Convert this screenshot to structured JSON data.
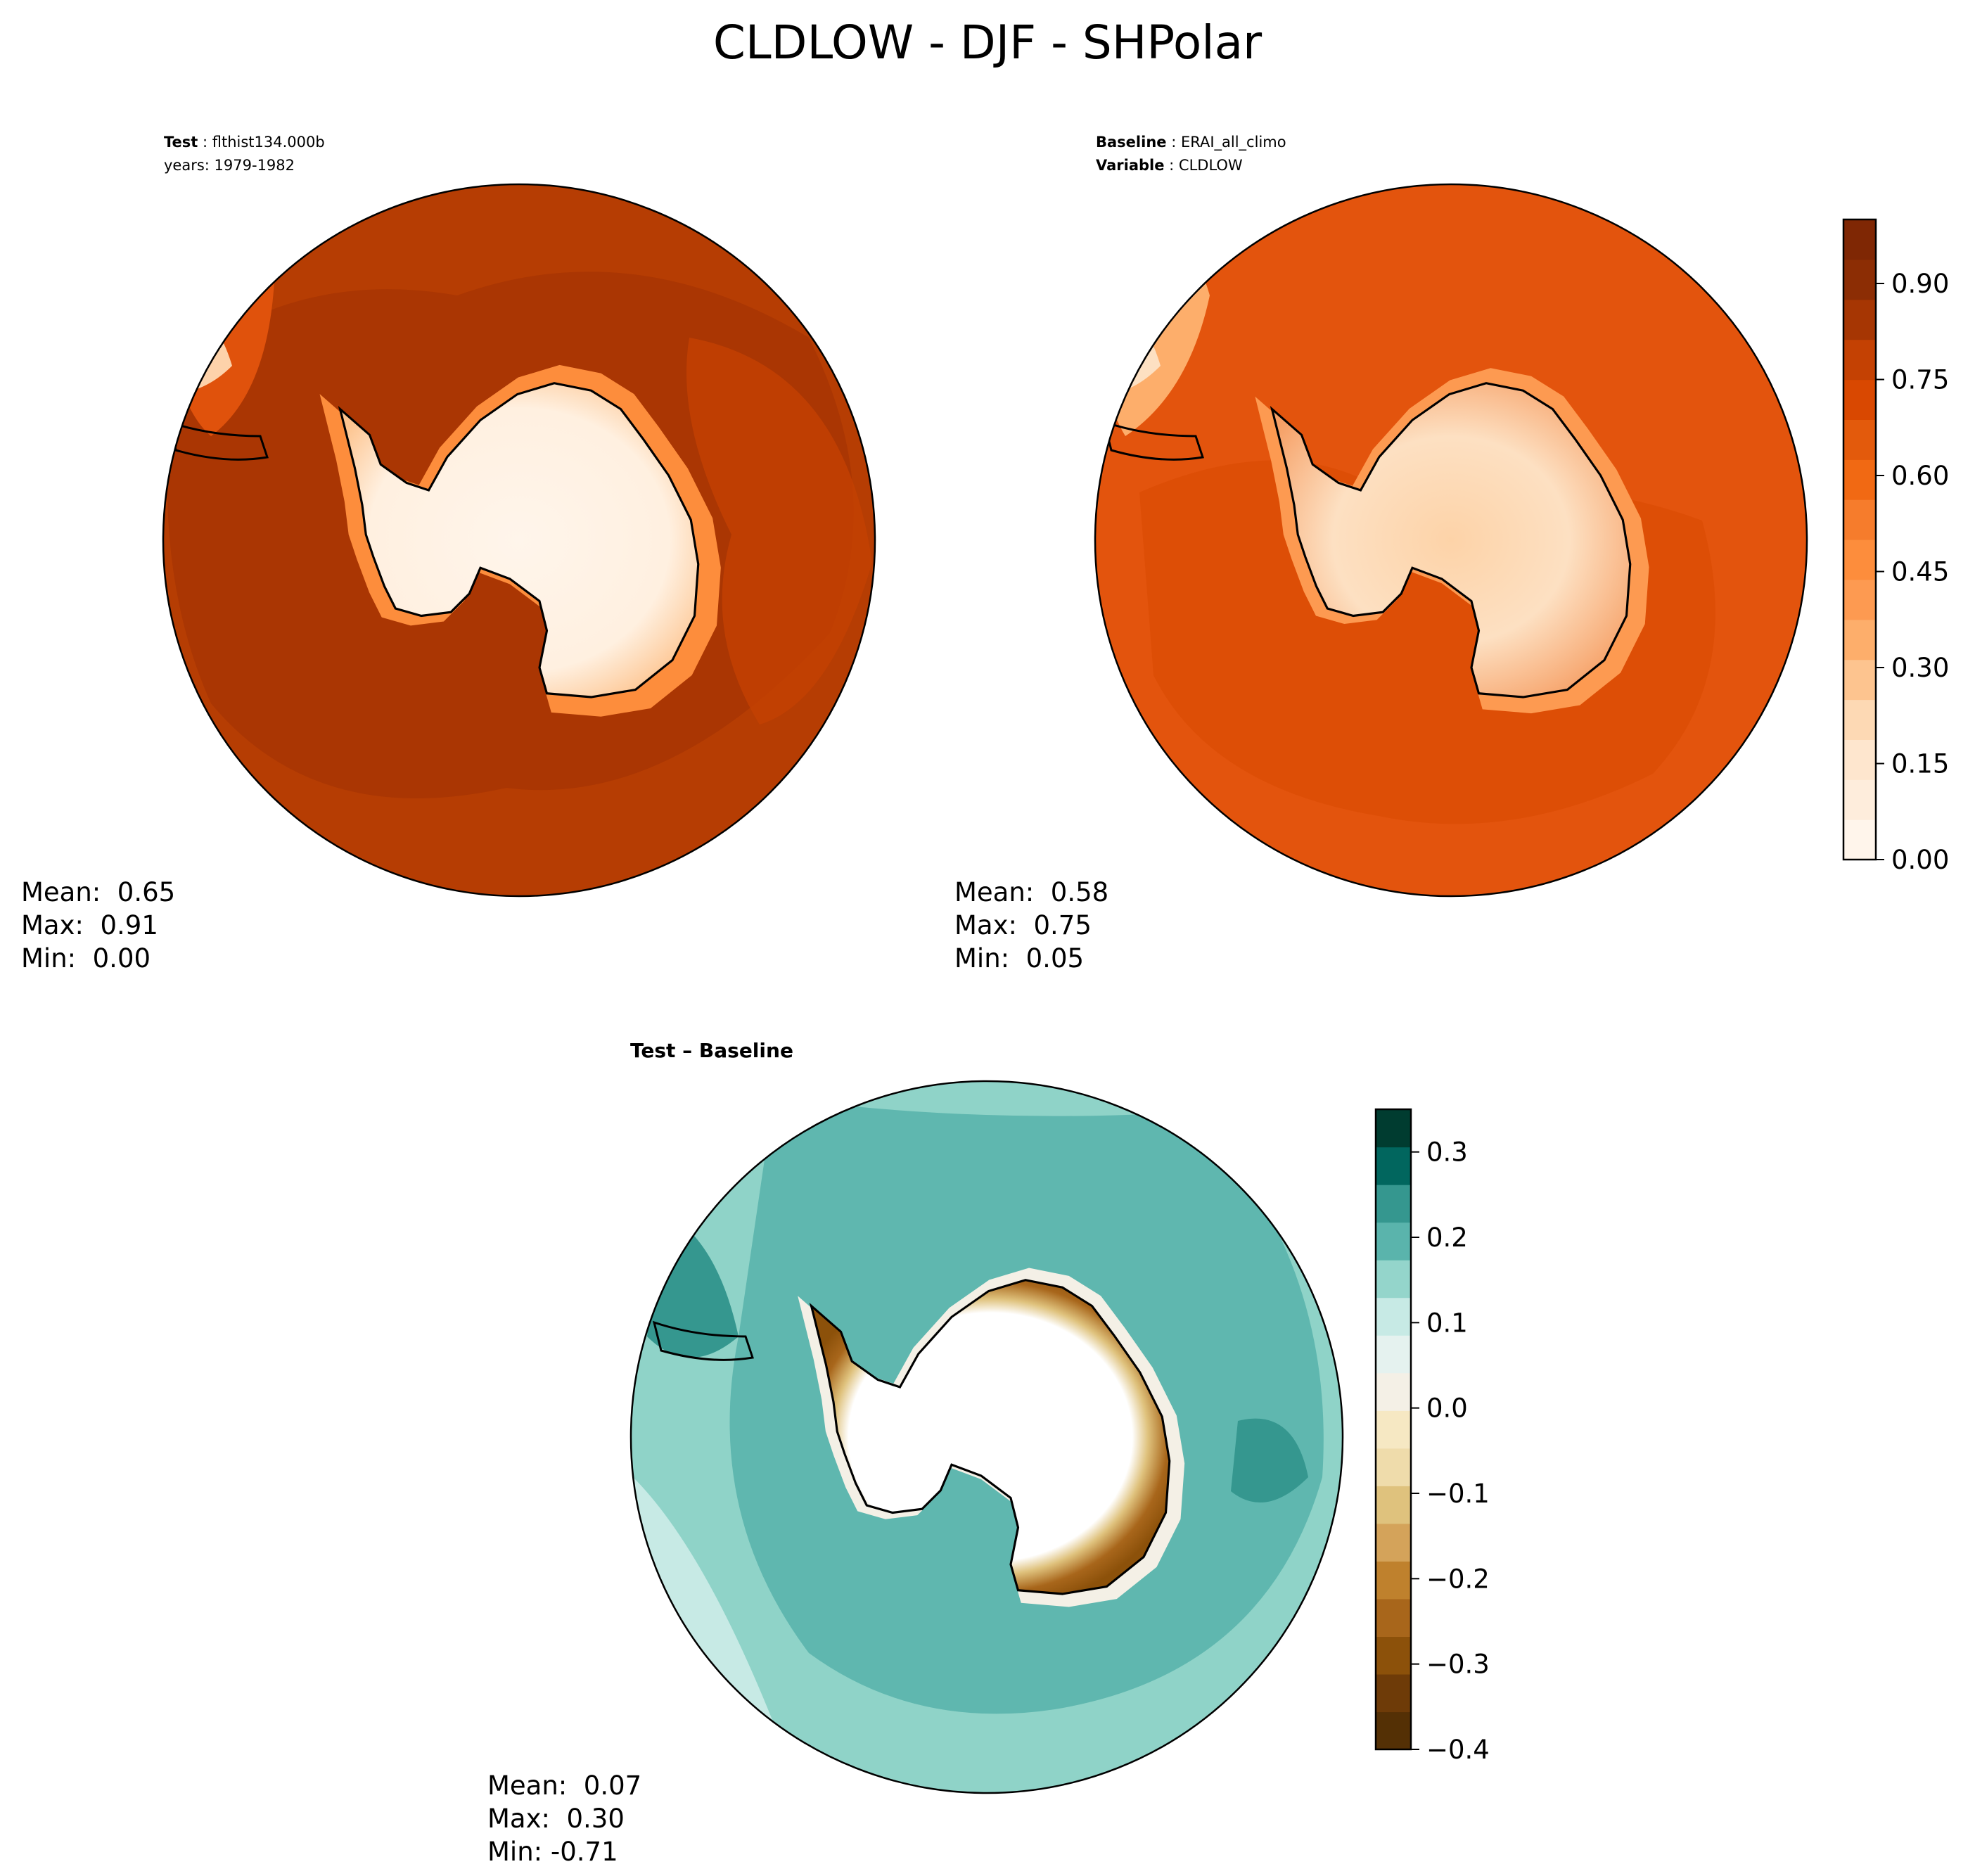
{
  "title": "CLDLOW - DJF - SHPolar",
  "panels": [
    {
      "id": "test",
      "header": [
        {
          "label": "Test",
          "value": "flthist134.000b"
        },
        {
          "label": "",
          "value": "years: 1979-1982"
        }
      ],
      "stats": {
        "mean": "Mean:  0.65",
        "max": "Max:  0.91",
        "min": "Min:  0.00"
      }
    },
    {
      "id": "baseline",
      "header": [
        {
          "label": "Baseline",
          "value": "ERAI_all_climo"
        },
        {
          "label": "Variable",
          "value": "CLDLOW"
        }
      ],
      "stats": {
        "mean": "Mean:  0.58",
        "max": "Max:  0.75",
        "min": "Min:  0.05"
      }
    },
    {
      "id": "difference",
      "title": "Test – Baseline",
      "stats": {
        "mean": "Mean:  0.07",
        "max": "Max:  0.30",
        "min": "Min: -0.71"
      }
    }
  ],
  "colorbars": {
    "field": {
      "ticks": [
        "0.00",
        "0.15",
        "0.30",
        "0.45",
        "0.60",
        "0.75",
        "0.90"
      ],
      "tick_values": [
        0.0,
        0.15,
        0.3,
        0.45,
        0.6,
        0.75,
        0.9
      ],
      "range": [
        0.0,
        1.0
      ],
      "colors": [
        "#fff5eb",
        "#feeddc",
        "#fee6ce",
        "#fdd9b4",
        "#fdc48f",
        "#fdae6b",
        "#fd9a51",
        "#fd8d3c",
        "#f67c2c",
        "#f16913",
        "#e35a0c",
        "#d94801",
        "#c44103",
        "#a63603",
        "#8c2d04",
        "#7f2704"
      ]
    },
    "difference": {
      "ticks": [
        "0.3",
        "0.2",
        "0.1",
        "0.0",
        "−0.1",
        "−0.2",
        "−0.3",
        "−0.4"
      ],
      "tick_values": [
        0.3,
        0.2,
        0.1,
        0.0,
        -0.1,
        -0.2,
        -0.3,
        -0.4
      ],
      "range": [
        -0.4,
        0.35
      ],
      "colors": [
        "#543005",
        "#6e3b08",
        "#8c510a",
        "#a8661b",
        "#bf812d",
        "#d4a35a",
        "#dfc27d",
        "#efdcab",
        "#f6e8c3",
        "#f4f0e6",
        "#e5f2ef",
        "#c7eae5",
        "#94d5cb",
        "#5ab4ac",
        "#35978f",
        "#01665e",
        "#003c30"
      ]
    }
  },
  "colors": {
    "field_ocean_test": "#b23a03",
    "field_ocean_baseline": "#e0520c",
    "field_land_low": "#fff2e4",
    "diff_ocean": "#7fcfc3",
    "diff_land": "#ffffff",
    "coast": "#000000"
  }
}
